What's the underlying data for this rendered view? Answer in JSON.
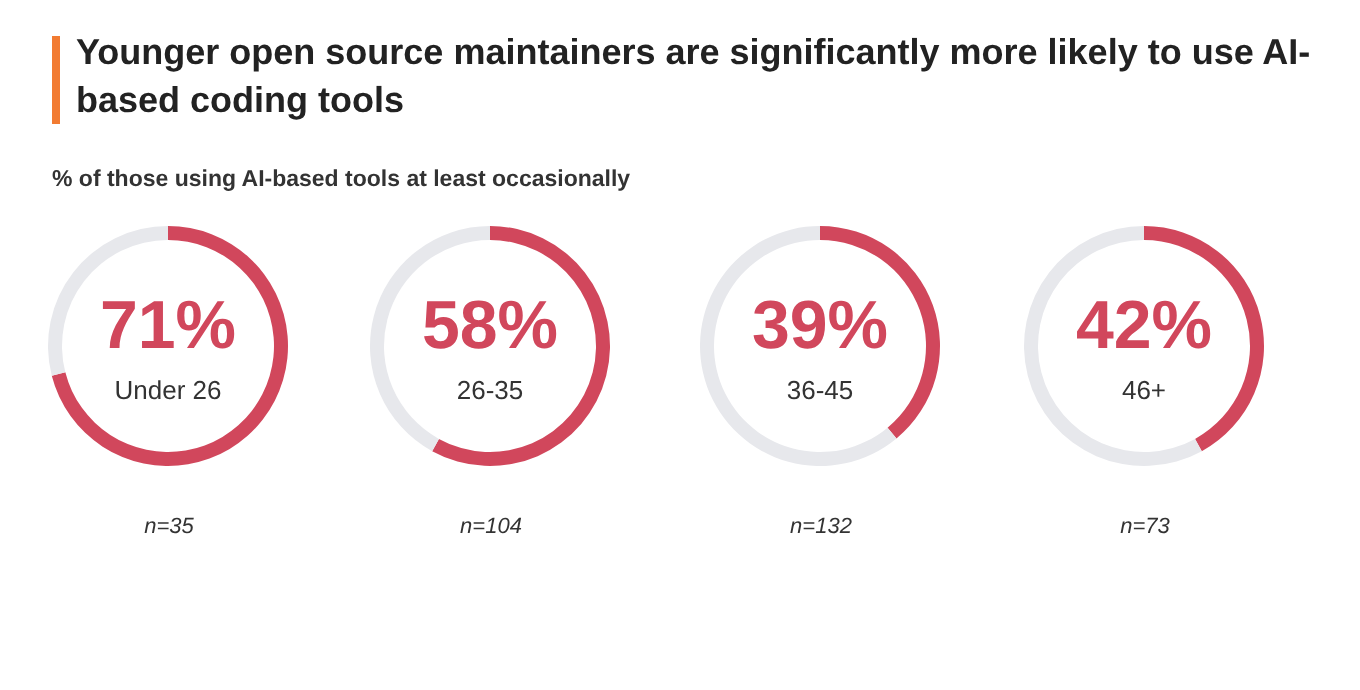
{
  "chart_data": [
    {
      "type": "donut",
      "title": "Younger open source maintainers are significantly more likely to use AI-based coding tools",
      "subtitle": "% of those using AI-based tools at least occasionally",
      "categories": [
        "Under 26",
        null
      ],
      "values": [
        71,
        29
      ],
      "colors": [
        "#d1475c",
        "#e7e8ec"
      ],
      "value_labels": [
        "71%",
        null
      ],
      "annotations": [
        "n=35"
      ]
    },
    {
      "type": "donut",
      "categories": [
        "26-35",
        null
      ],
      "values": [
        58,
        42
      ],
      "colors": [
        "#d1475c",
        "#e7e8ec"
      ],
      "value_labels": [
        "58%",
        null
      ],
      "annotations": [
        "n=104"
      ]
    },
    {
      "type": "donut",
      "categories": [
        "36-45",
        null
      ],
      "values": [
        39,
        61
      ],
      "colors": [
        "#d1475c",
        "#e7e8ec"
      ],
      "value_labels": [
        "39%",
        null
      ],
      "annotations": [
        "n=132"
      ]
    },
    {
      "type": "donut",
      "categories": [
        "46+",
        null
      ],
      "values": [
        42,
        58
      ],
      "colors": [
        "#d1475c",
        "#e7e8ec"
      ],
      "value_labels": [
        "42%",
        null
      ],
      "annotations": [
        "n=73"
      ]
    }
  ]
}
